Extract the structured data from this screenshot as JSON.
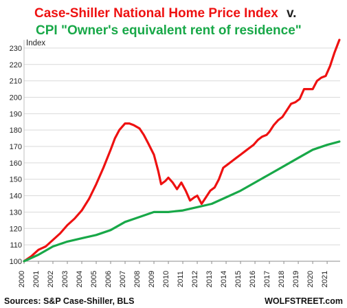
{
  "chart_data": {
    "type": "line",
    "title_part1": "Case-Shiller National Home Price Index",
    "title_v": "v.",
    "title_part2": "CPI \"Owner's equivalent rent of residence\"",
    "ylabel": "Index",
    "ylim": [
      100,
      235
    ],
    "yticks": [
      100,
      110,
      120,
      130,
      140,
      150,
      160,
      170,
      180,
      190,
      200,
      210,
      220,
      230
    ],
    "xlim": [
      2000,
      2021.9
    ],
    "xticks": [
      "2000",
      "2001",
      "2002",
      "2003",
      "2004",
      "2005",
      "2006",
      "2007",
      "2008",
      "2009",
      "2010",
      "2011",
      "2012",
      "2013",
      "2014",
      "2015",
      "2016",
      "2017",
      "2018",
      "2019",
      "2020",
      "2021"
    ],
    "grid": true,
    "series": [
      {
        "name": "Case-Shiller National Home Price Index",
        "color": "#ee1111",
        "points": [
          [
            2000.0,
            100
          ],
          [
            2000.5,
            103
          ],
          [
            2001.0,
            107
          ],
          [
            2001.5,
            109
          ],
          [
            2002.0,
            113
          ],
          [
            2002.5,
            117
          ],
          [
            2003.0,
            122
          ],
          [
            2003.5,
            126
          ],
          [
            2004.0,
            131
          ],
          [
            2004.5,
            138
          ],
          [
            2005.0,
            147
          ],
          [
            2005.5,
            157
          ],
          [
            2006.0,
            168
          ],
          [
            2006.3,
            175
          ],
          [
            2006.6,
            180
          ],
          [
            2007.0,
            184
          ],
          [
            2007.3,
            184
          ],
          [
            2007.6,
            183
          ],
          [
            2008.0,
            181
          ],
          [
            2008.3,
            177
          ],
          [
            2008.6,
            172
          ],
          [
            2009.0,
            165
          ],
          [
            2009.3,
            155
          ],
          [
            2009.5,
            147
          ],
          [
            2009.8,
            149
          ],
          [
            2010.0,
            151
          ],
          [
            2010.3,
            148
          ],
          [
            2010.6,
            144
          ],
          [
            2010.9,
            148
          ],
          [
            2011.2,
            143
          ],
          [
            2011.5,
            137
          ],
          [
            2011.8,
            139
          ],
          [
            2012.0,
            140
          ],
          [
            2012.3,
            135
          ],
          [
            2012.6,
            139
          ],
          [
            2012.9,
            143
          ],
          [
            2013.2,
            145
          ],
          [
            2013.5,
            150
          ],
          [
            2013.8,
            157
          ],
          [
            2014.1,
            159
          ],
          [
            2014.4,
            161
          ],
          [
            2014.7,
            163
          ],
          [
            2015.0,
            165
          ],
          [
            2015.3,
            167
          ],
          [
            2015.6,
            169
          ],
          [
            2015.9,
            171
          ],
          [
            2016.2,
            174
          ],
          [
            2016.5,
            176
          ],
          [
            2016.8,
            177
          ],
          [
            2017.0,
            179
          ],
          [
            2017.3,
            183
          ],
          [
            2017.6,
            186
          ],
          [
            2017.9,
            188
          ],
          [
            2018.2,
            192
          ],
          [
            2018.5,
            196
          ],
          [
            2018.8,
            197
          ],
          [
            2019.1,
            199
          ],
          [
            2019.4,
            205
          ],
          [
            2019.7,
            205
          ],
          [
            2020.0,
            205
          ],
          [
            2020.3,
            210
          ],
          [
            2020.6,
            212
          ],
          [
            2020.9,
            213
          ],
          [
            2021.2,
            219
          ],
          [
            2021.5,
            227
          ],
          [
            2021.85,
            235
          ]
        ]
      },
      {
        "name": "CPI \"Owner's equivalent rent of residence\"",
        "color": "#18a848",
        "points": [
          [
            2000,
            100
          ],
          [
            2001,
            104
          ],
          [
            2002,
            109
          ],
          [
            2003,
            112
          ],
          [
            2004,
            114
          ],
          [
            2005,
            116
          ],
          [
            2006,
            119
          ],
          [
            2007,
            124
          ],
          [
            2008,
            127
          ],
          [
            2009,
            130
          ],
          [
            2010,
            130
          ],
          [
            2011,
            131
          ],
          [
            2012,
            133
          ],
          [
            2013,
            135
          ],
          [
            2014,
            139
          ],
          [
            2015,
            143
          ],
          [
            2016,
            148
          ],
          [
            2017,
            153
          ],
          [
            2018,
            158
          ],
          [
            2019,
            163
          ],
          [
            2020,
            168
          ],
          [
            2021,
            171
          ],
          [
            2021.85,
            173
          ]
        ]
      }
    ],
    "footer_left": "Sources: S&P Case-Shiller, BLS",
    "footer_right": "WOLFSTREET.com"
  }
}
